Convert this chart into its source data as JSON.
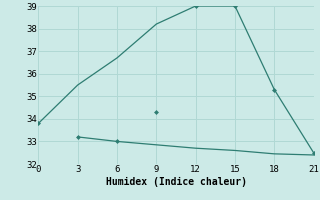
{
  "xlabel": "Humidex (Indice chaleur)",
  "line1_x": [
    0,
    3,
    6,
    9,
    12,
    15,
    18,
    21
  ],
  "line1_y": [
    33.8,
    35.5,
    36.7,
    38.2,
    39.0,
    39.0,
    35.3,
    32.5
  ],
  "line2_x": [
    3,
    6,
    9,
    12,
    15,
    18,
    21
  ],
  "line2_y": [
    33.2,
    33.0,
    32.85,
    32.7,
    32.6,
    32.45,
    32.4
  ],
  "line_color": "#2e7d72",
  "bg_color": "#cceae7",
  "grid_color": "#b0d8d4",
  "xlim": [
    0,
    21
  ],
  "ylim": [
    32,
    39
  ],
  "xticks": [
    0,
    3,
    6,
    9,
    12,
    15,
    18,
    21
  ],
  "yticks": [
    32,
    33,
    34,
    35,
    36,
    37,
    38,
    39
  ],
  "marker_x": [
    0,
    3,
    6,
    9,
    12,
    15,
    18,
    21
  ],
  "marker_y": [
    33.8,
    33.2,
    33.0,
    34.3,
    39.0,
    39.0,
    35.3,
    32.5
  ]
}
